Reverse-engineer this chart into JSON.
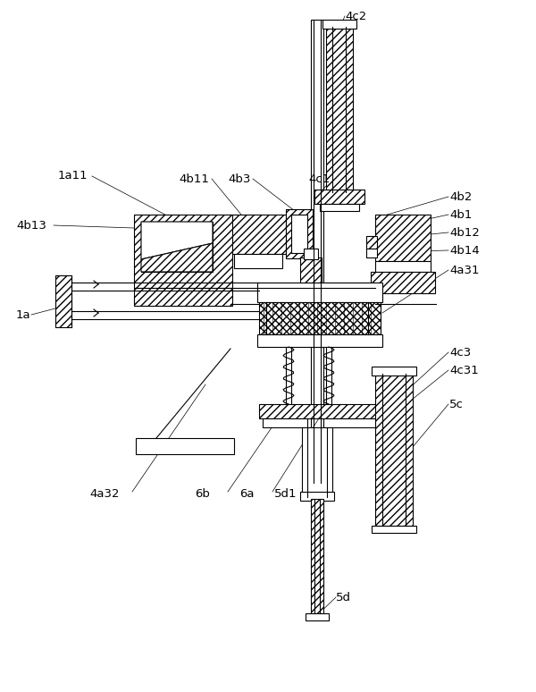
{
  "bg_color": "#ffffff",
  "line_color": "#000000",
  "lw": 0.8,
  "figsize": [
    6.0,
    7.74
  ],
  "dpi": 100,
  "xlim": [
    0,
    600
  ],
  "ylim": [
    0,
    774
  ]
}
